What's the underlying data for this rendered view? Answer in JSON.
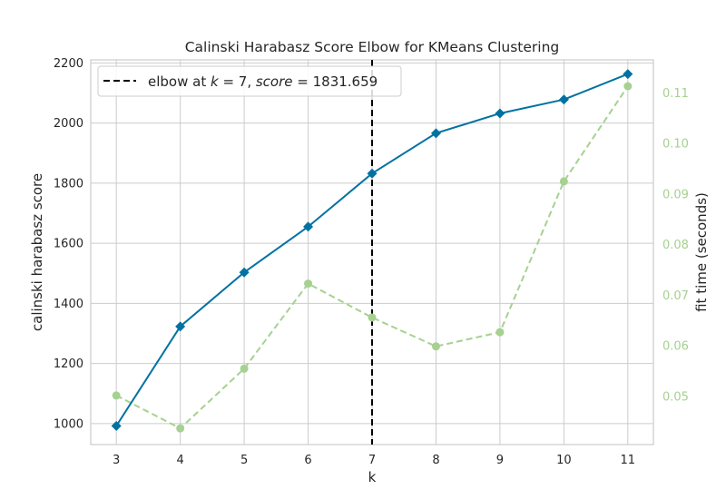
{
  "chart_data": {
    "type": "line",
    "title": "Calinski Harabasz Score Elbow for KMeans Clustering",
    "xlabel": "k",
    "ylabel": "calinski harabasz score",
    "y2label": "fit time (seconds)",
    "x": [
      3,
      4,
      5,
      6,
      7,
      8,
      9,
      10,
      11
    ],
    "xlim": [
      2.6,
      11.4
    ],
    "ylim": [
      930,
      2210
    ],
    "y2lim": [
      0.0405,
      0.1165
    ],
    "xticks": [
      "3",
      "4",
      "5",
      "6",
      "7",
      "8",
      "9",
      "10",
      "11"
    ],
    "yticks": [
      1000,
      1200,
      1400,
      1600,
      1800,
      2000,
      2200
    ],
    "y2ticks": [
      0.05,
      0.06,
      0.07,
      0.08,
      0.09,
      0.1,
      0.11
    ],
    "y2tick_labels": [
      "0.05",
      "0.06",
      "0.07",
      "0.08",
      "0.09",
      "0.10",
      "0.11"
    ],
    "grid": true,
    "series": [
      {
        "axis": "left",
        "color": "#0072a2",
        "marker": "diamond",
        "style": "solid",
        "values": [
          992,
          1323,
          1503,
          1655,
          1832,
          1966,
          2032,
          2078,
          2163
        ]
      },
      {
        "axis": "right",
        "color": "#a6d191",
        "marker": "circle",
        "style": "dashed",
        "values": [
          0.0502,
          0.0437,
          0.0555,
          0.0723,
          0.0656,
          0.0599,
          0.0627,
          0.0925,
          0.1113
        ]
      }
    ],
    "elbow": {
      "k": 7,
      "legend_prefix": "elbow at ",
      "legend_k": "k",
      "legend_mid": " = 7, ",
      "legend_score": "score",
      "legend_end": " = 1831.659"
    },
    "legend_position": "top-left",
    "colors": {
      "primary": "#0072a2",
      "secondary": "#a6d191",
      "grid": "#cccccc",
      "elbow": "#000000"
    }
  }
}
